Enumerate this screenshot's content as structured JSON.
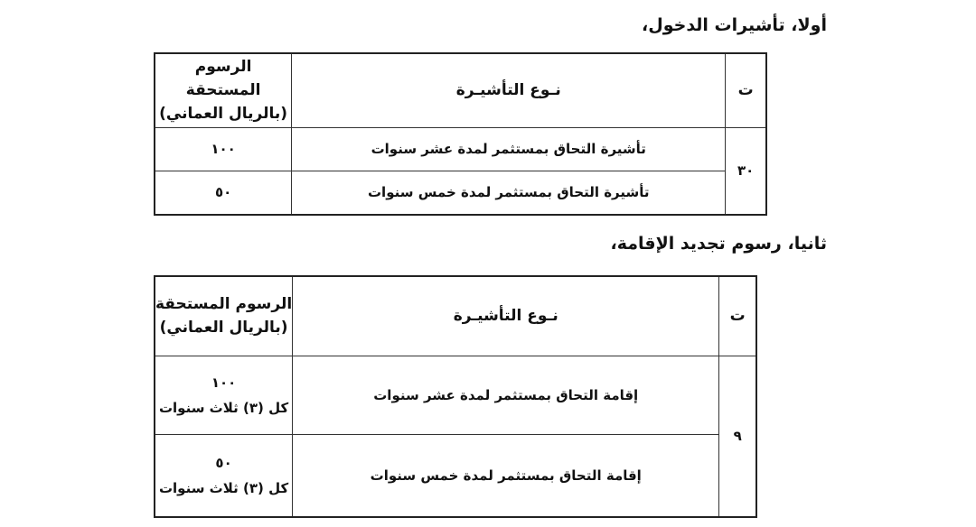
{
  "section1": {
    "heading": "أولا، تأشيرات الدخول،",
    "columns": {
      "num": "ت",
      "type": "نـوع التأشيـرة",
      "fee_line1": "الرسوم المستحقة",
      "fee_line2": "(بالريال العماني)"
    },
    "number": "٣٠",
    "rows": [
      {
        "type": "تأشيرة التحاق بمستثمر لمدة عشر سنوات",
        "fee": "١٠٠"
      },
      {
        "type": "تأشيرة التحاق بمستثمر لمدة خمس سنوات",
        "fee": "٥٠"
      }
    ]
  },
  "section2": {
    "heading": "ثانيا، رسوم تجديد الإقامة،",
    "columns": {
      "num": "ت",
      "type": "نـوع التأشيـرة",
      "fee_line1": "الرسوم المستحقة",
      "fee_line2": "(بالريال العماني)"
    },
    "number": "٩",
    "rows": [
      {
        "type": "إقامة التحاق بمستثمر لمدة عشر سنوات",
        "fee": "١٠٠",
        "fee_note": "كل (٣) ثلاث سنوات"
      },
      {
        "type": "إقامة التحاق بمستثمر لمدة خمس سنوات",
        "fee": "٥٠",
        "fee_note": "كل (٣) ثلاث سنوات"
      }
    ]
  }
}
